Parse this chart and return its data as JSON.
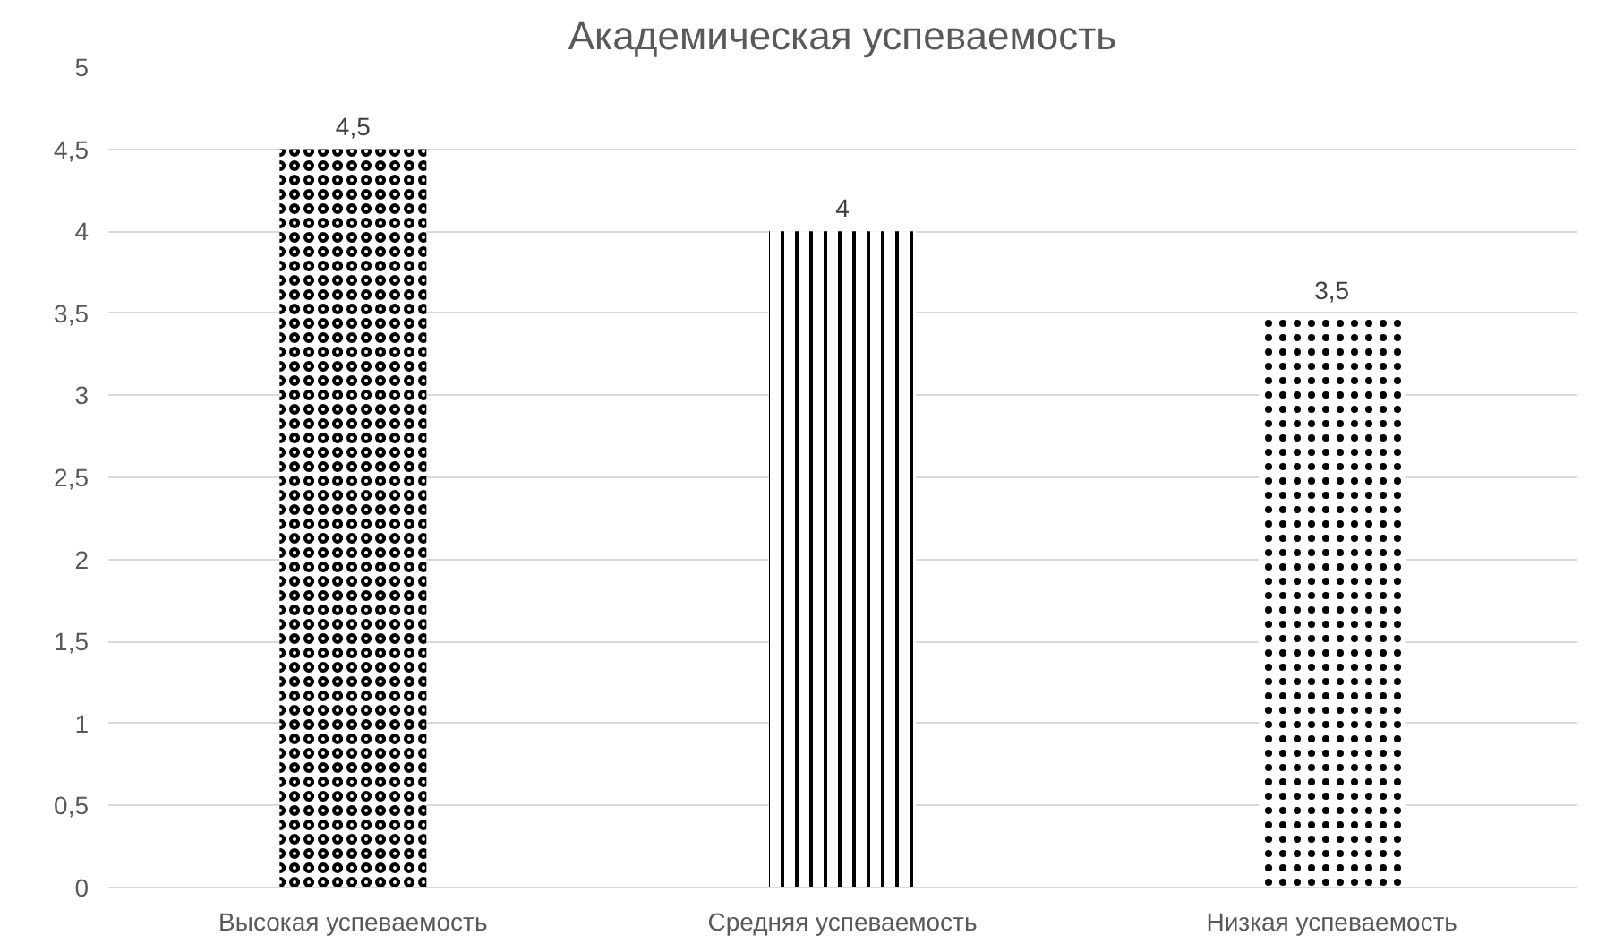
{
  "chart_data": {
    "type": "bar",
    "title": "Академическая успеваемость",
    "categories": [
      "Высокая успеваемость",
      "Средняя успеваемость",
      "Низкая успеваемость"
    ],
    "values": [
      4.5,
      4,
      3.5
    ],
    "value_labels": [
      "4,5",
      "4",
      "3,5"
    ],
    "color": "#000000",
    "ylim": [
      0,
      5
    ],
    "yticks": [
      0,
      {
        "value": 0.5,
        "label": "0,5"
      },
      1,
      {
        "value": 1.5,
        "label": "1,5"
      },
      2,
      {
        "value": 2.5,
        "label": "2,5"
      },
      3,
      {
        "value": 3.5,
        "label": "3,5"
      },
      4,
      {
        "value": 4.5,
        "label": "4,5"
      },
      5
    ],
    "grid": "y"
  }
}
